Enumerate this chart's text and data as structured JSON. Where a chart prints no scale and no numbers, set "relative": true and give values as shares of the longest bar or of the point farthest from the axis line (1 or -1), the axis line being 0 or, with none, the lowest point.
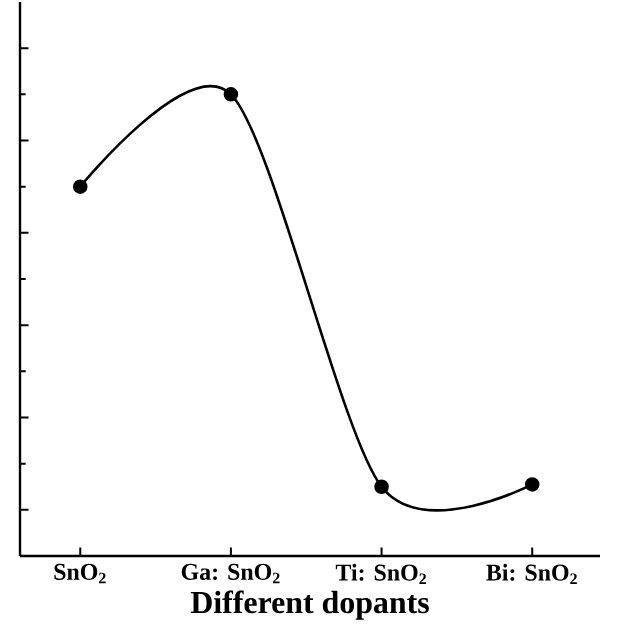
{
  "chart_data": {
    "type": "line",
    "xlabel": "Different dopants",
    "categories": [
      "SnO$_{2}$",
      "Ga: SnO$_{2}$",
      "Ti: SnO$_{2}$",
      "Bi: SnO$_{2}$"
    ],
    "relative": true,
    "series": [
      {
        "color": "#000000",
        "values": [
          0.8,
          1,
          0.15,
          0.155
        ]
      }
    ],
    "marker": "circle",
    "line_style": "solid"
  }
}
